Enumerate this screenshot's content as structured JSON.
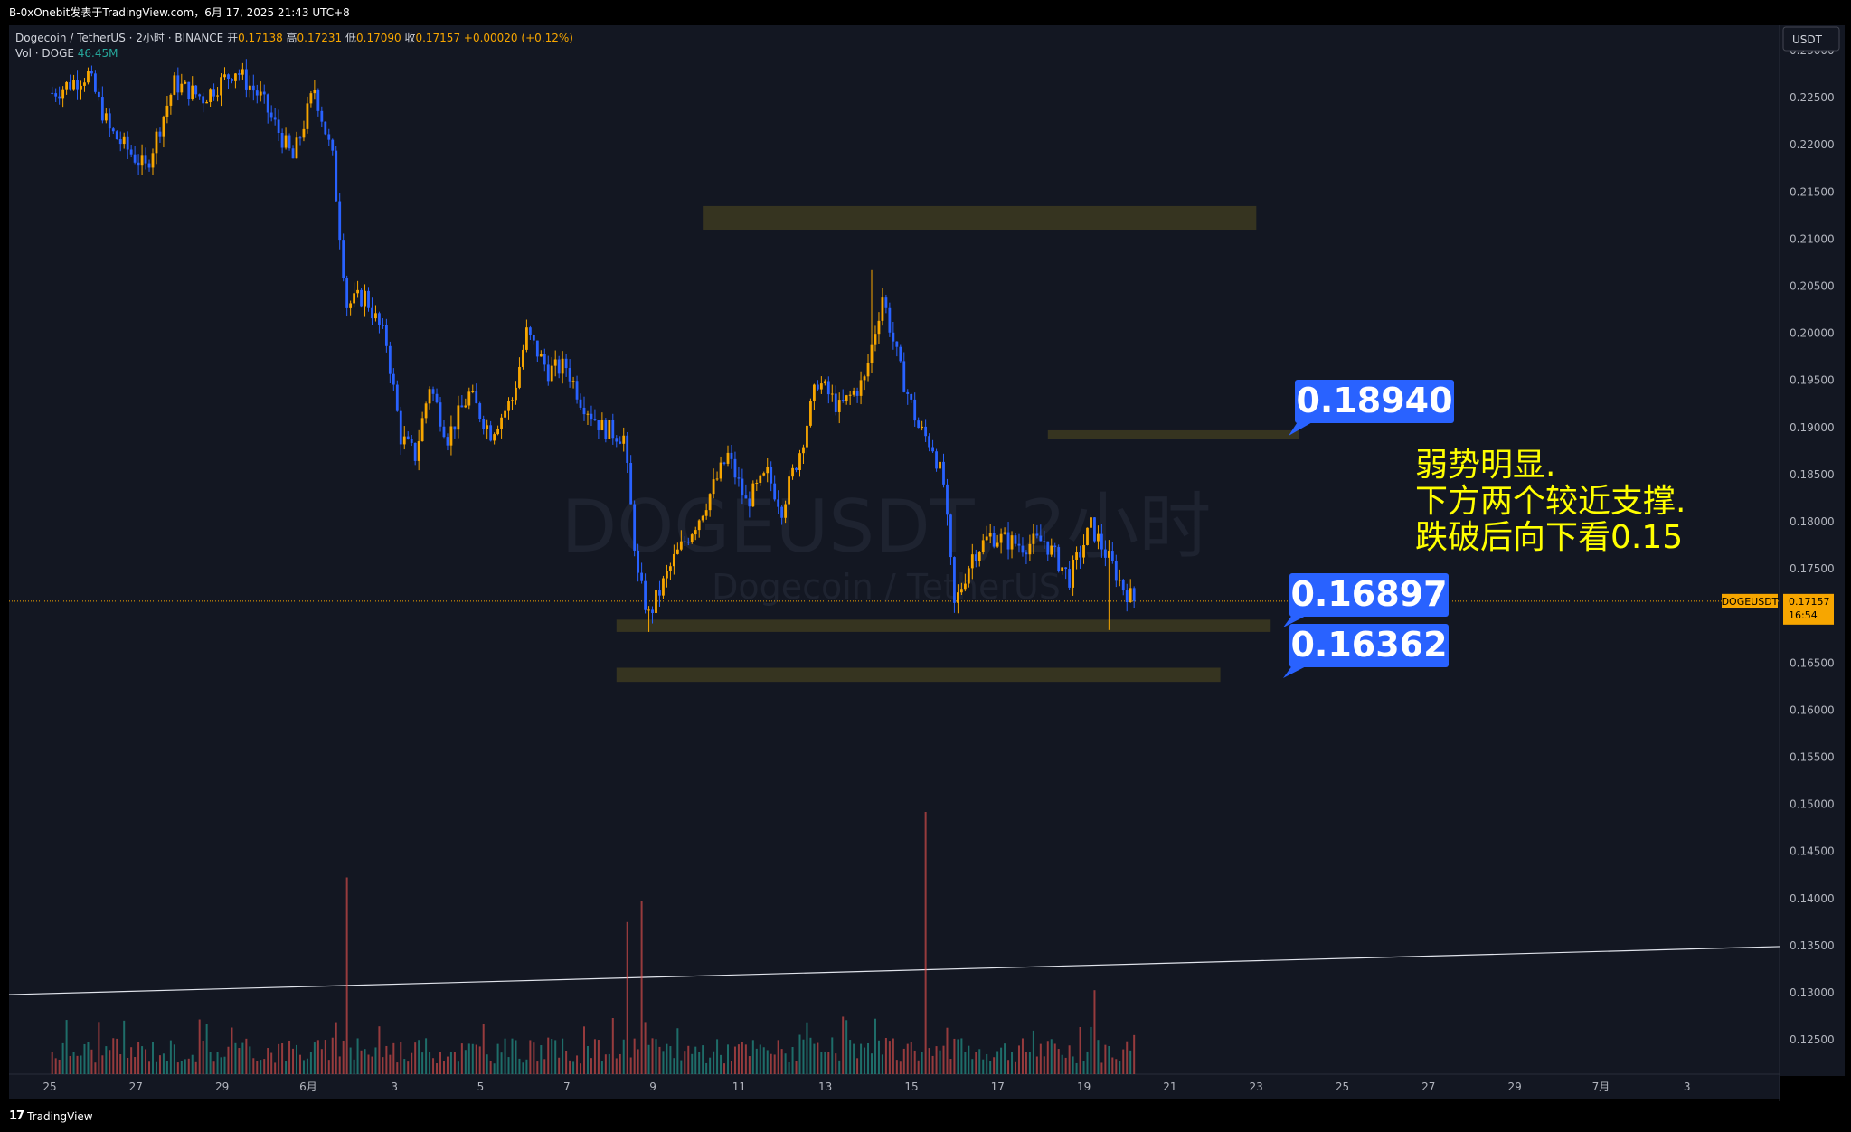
{
  "header": {
    "publisher": "B-0xOnebit发表于TradingView.com，6月 17, 2025 21:43 UTC+8"
  },
  "legend": {
    "symbol": "Dogecoin / TetherUS · 2小时 · BINANCE",
    "open_label": "开",
    "open_value": "0.17138",
    "high_label": "高",
    "high_value": "0.17231",
    "low_label": "低",
    "low_value": "0.17090",
    "close_label": "收",
    "close_value": "0.17157",
    "change": "+0.00020 (+0.12%)",
    "volume_label": "Vol · DOGE",
    "volume_value": "46.45M"
  },
  "watermark": {
    "main": "DOGEUSDT, 2小时",
    "sub": "Dogecoin / TetherUS"
  },
  "currency_label": "USDT",
  "price_tag": {
    "symbol": "DOGEUSDT",
    "price": "0.17157",
    "countdown": "16:54"
  },
  "annotation_text": [
    "弱势明显.",
    "下方两个较近支撑.",
    "跌破后向下看0.15"
  ],
  "colors": {
    "background": "#131722",
    "candle_up": "#f7a600",
    "candle_down": "#2962ff",
    "zone": "#3b3720",
    "callout": "#2962ff",
    "annotation": "#ffff00",
    "price_line": "#f7a600",
    "volume_up": "#26a69a",
    "volume_down": "#ef5350"
  },
  "footer": {
    "brand": "TradingView",
    "logo_icon": "tradingview-logo-icon"
  },
  "chart_data": {
    "type": "candlestick",
    "y_axis": {
      "range": [
        0.1225,
        0.2305
      ],
      "ticks": [
        "0.12500",
        "0.13000",
        "0.13500",
        "0.14000",
        "0.14500",
        "0.15000",
        "0.15500",
        "0.16000",
        "0.16500",
        "0.17000",
        "0.17500",
        "0.18000",
        "0.18500",
        "0.19000",
        "0.19500",
        "0.20000",
        "0.20500",
        "0.21000",
        "0.21500",
        "0.22000",
        "0.22500",
        "0.23000"
      ]
    },
    "x_axis": {
      "ticks": [
        "25",
        "27",
        "29",
        "6月",
        "3",
        "5",
        "7",
        "9",
        "11",
        "13",
        "15",
        "17",
        "19",
        "21",
        "23",
        "25",
        "27",
        "29",
        "7月",
        "3"
      ]
    },
    "price_path": [
      {
        "x": "5月24 04:00",
        "close": 0.2255
      },
      {
        "x": "5月25 00:00",
        "close": 0.2275
      },
      {
        "x": "5月25 12:00",
        "close": 0.2215
      },
      {
        "x": "5月26 08:00",
        "close": 0.2175
      },
      {
        "x": "5月27 00:00",
        "close": 0.2265
      },
      {
        "x": "5月27 16:00",
        "close": 0.225
      },
      {
        "x": "5月28 10:00",
        "close": 0.228
      },
      {
        "x": "5月29 00:00",
        "close": 0.225
      },
      {
        "x": "5月29 18:00",
        "close": 0.2185
      },
      {
        "x": "5月30 06:00",
        "close": 0.226
      },
      {
        "x": "5月30 16:00",
        "close": 0.2185
      },
      {
        "x": "5月31 00:00",
        "close": 0.203
      },
      {
        "x": "5月31 10:00",
        "close": 0.204
      },
      {
        "x": "5月31 22:00",
        "close": 0.199
      },
      {
        "x": "6月1 06:00",
        "close": 0.189
      },
      {
        "x": "6月1 14:00",
        "close": 0.187
      },
      {
        "x": "6月1 22:00",
        "close": 0.1945
      },
      {
        "x": "6月2 08:00",
        "close": 0.189
      },
      {
        "x": "6月2 20:00",
        "close": 0.1935
      },
      {
        "x": "6月3 08:00",
        "close": 0.1895
      },
      {
        "x": "6月3 20:00",
        "close": 0.193
      },
      {
        "x": "6月4 04:00",
        "close": 0.2
      },
      {
        "x": "6月4 16:00",
        "close": 0.196
      },
      {
        "x": "6月5 02:00",
        "close": 0.1965
      },
      {
        "x": "6月5 10:00",
        "close": 0.193
      },
      {
        "x": "6月5 22:00",
        "close": 0.19
      },
      {
        "x": "6月6 10:00",
        "close": 0.189
      },
      {
        "x": "6月6 18:00",
        "close": 0.174
      },
      {
        "x": "6月7 00:00",
        "close": 0.17
      },
      {
        "x": "6月7 14:00",
        "close": 0.176
      },
      {
        "x": "6月8 04:00",
        "close": 0.1805
      },
      {
        "x": "6月8 20:00",
        "close": 0.187
      },
      {
        "x": "6月9 06:00",
        "close": 0.182
      },
      {
        "x": "6月9 18:00",
        "close": 0.185
      },
      {
        "x": "6月10 02:00",
        "close": 0.1815
      },
      {
        "x": "6月10 12:00",
        "close": 0.1875
      },
      {
        "x": "6月10 22:00",
        "close": 0.195
      },
      {
        "x": "6月11 10:00",
        "close": 0.192
      },
      {
        "x": "6月12 00:00",
        "close": 0.195
      },
      {
        "x": "6月12 10:00",
        "close": 0.204
      },
      {
        "x": "6月12 20:00",
        "close": 0.196
      },
      {
        "x": "6月13 06:00",
        "close": 0.19
      },
      {
        "x": "6月13 14:00",
        "close": 0.188
      },
      {
        "x": "6月13 20:00",
        "close": 0.184
      },
      {
        "x": "6月14 02:00",
        "close": 0.171
      },
      {
        "x": "6月14 12:00",
        "close": 0.1765
      },
      {
        "x": "6月14 22:00",
        "close": 0.1785
      },
      {
        "x": "6月15 16:00",
        "close": 0.1775
      },
      {
        "x": "6月16 04:00",
        "close": 0.178
      },
      {
        "x": "6月16 18:00",
        "close": 0.174
      },
      {
        "x": "6月17 06:00",
        "close": 0.1795
      },
      {
        "x": "6月17 16:00",
        "close": 0.176
      },
      {
        "x": "6月18 00:00",
        "close": 0.173
      },
      {
        "x": "6月18 06:00",
        "close": 0.1716
      }
    ],
    "extremes": [
      {
        "label": "spike_high",
        "x": "6月12 04:00",
        "price": 0.2067
      },
      {
        "label": "wick_low",
        "x": "6月7 00:00",
        "price": 0.1683
      },
      {
        "label": "wick_low",
        "x": "6月17 16:00",
        "price": 0.1685
      }
    ],
    "zones": [
      {
        "x_start": "6月8 06:00",
        "x_end": "6月21 02:00",
        "price_low": 0.211,
        "price_high": 0.2135
      },
      {
        "x_start": "6月16 06:00",
        "x_end": "6月22 02:00",
        "price_low": 0.1888,
        "price_high": 0.1897
      },
      {
        "x_start": "6月6 06:00",
        "x_end": "6月21 10:00",
        "price_low": 0.1683,
        "price_high": 0.1696
      },
      {
        "x_start": "6月6 06:00",
        "x_end": "6月20 06:00",
        "price_low": 0.163,
        "price_high": 0.1645
      }
    ],
    "callouts": [
      "0.18940",
      "0.16897",
      "0.16362"
    ],
    "current_price": 0.17157,
    "trendline": {
      "start": {
        "x": "5月24 00:00",
        "price": 0.1298
      },
      "end": {
        "x": "7月4 00:00",
        "price": 0.1349
      }
    },
    "volume_spikes": [
      {
        "x": "5月31 00:00",
        "rel": 0.75
      },
      {
        "x": "6月6 12:00",
        "rel": 0.58
      },
      {
        "x": "6月6 20:00",
        "rel": 0.66
      },
      {
        "x": "6月13 10:00",
        "rel": 1.0
      },
      {
        "x": "6月17 08:00",
        "rel": 0.32
      }
    ]
  }
}
